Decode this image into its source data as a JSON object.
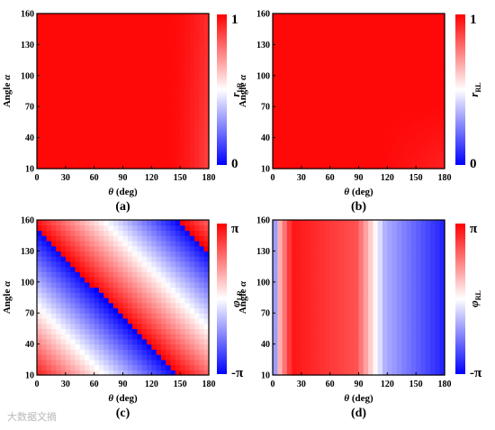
{
  "watermark": "大数据文摘",
  "chart_data": [
    {
      "id": "a",
      "type": "heatmap",
      "panel_label": "(a)",
      "xlabel_sym": "θ",
      "xlabel_unit": " (deg)",
      "ylabel_text": "Angle ",
      "ylabel_sym": "α",
      "x_ticks": [
        "0",
        "30",
        "60",
        "90",
        "120",
        "150",
        "180"
      ],
      "y_ticks": [
        "10",
        "40",
        "70",
        "100",
        "130",
        "160"
      ],
      "xlim": [
        0,
        180
      ],
      "ylim": [
        10,
        160
      ],
      "colorbar": {
        "top": "1",
        "bottom": "0",
        "name": "r",
        "sub": "LR",
        "colors": [
          "#ff0000",
          "#ffffff",
          "#0000ff"
        ]
      },
      "value_range": [
        0,
        1
      ],
      "colormap": "blue-white-red",
      "field": "r_LR",
      "description_values": "≈1 everywhere; slight decrease toward θ=180°"
    },
    {
      "id": "b",
      "type": "heatmap",
      "panel_label": "(b)",
      "xlabel_sym": "θ",
      "xlabel_unit": " (deg)",
      "ylabel_text": "Angle ",
      "ylabel_sym": "α",
      "x_ticks": [
        "0",
        "30",
        "60",
        "90",
        "120",
        "150",
        "180"
      ],
      "y_ticks": [
        "10",
        "40",
        "70",
        "100",
        "130",
        "160"
      ],
      "xlim": [
        0,
        180
      ],
      "ylim": [
        10,
        160
      ],
      "colorbar": {
        "top": "1",
        "bottom": "0",
        "name": "r",
        "sub": "RL",
        "colors": [
          "#ff0000",
          "#ffffff",
          "#0000ff"
        ]
      },
      "value_range": [
        0,
        1
      ],
      "colormap": "blue-white-red",
      "field": "r_RL"
    },
    {
      "id": "c",
      "type": "heatmap",
      "panel_label": "(c)",
      "xlabel_sym": "θ",
      "xlabel_unit": " (deg)",
      "ylabel_text": "Angle ",
      "ylabel_sym": "α",
      "x_ticks": [
        "0",
        "30",
        "60",
        "90",
        "120",
        "150",
        "180"
      ],
      "y_ticks": [
        "10",
        "40",
        "70",
        "100",
        "130",
        "160"
      ],
      "xlim": [
        0,
        180
      ],
      "ylim": [
        10,
        160
      ],
      "colorbar": {
        "top": "π",
        "bottom": "-π",
        "name": "φ",
        "sub": "LR",
        "colors": [
          "#ff0000",
          "#ffffff",
          "#0000ff"
        ]
      },
      "value_range": [
        "-π",
        "π"
      ],
      "colormap": "blue-white-red",
      "field": "phi_LR"
    },
    {
      "id": "d",
      "type": "heatmap",
      "panel_label": "(d)",
      "xlabel_sym": "θ",
      "xlabel_unit": " (deg)",
      "ylabel_text": "Angle ",
      "ylabel_sym": "α",
      "x_ticks": [
        "0",
        "30",
        "60",
        "90",
        "120",
        "150",
        "180"
      ],
      "y_ticks": [
        "10",
        "40",
        "70",
        "100",
        "130",
        "160"
      ],
      "xlim": [
        0,
        180
      ],
      "ylim": [
        10,
        160
      ],
      "colorbar": {
        "top": "π",
        "bottom": "-π",
        "name": "φ",
        "sub": "RL",
        "colors": [
          "#ff0000",
          "#ffffff",
          "#0000ff"
        ]
      },
      "value_range": [
        "-π",
        "π"
      ],
      "colormap": "blue-white-red",
      "field": "phi_RL"
    }
  ]
}
